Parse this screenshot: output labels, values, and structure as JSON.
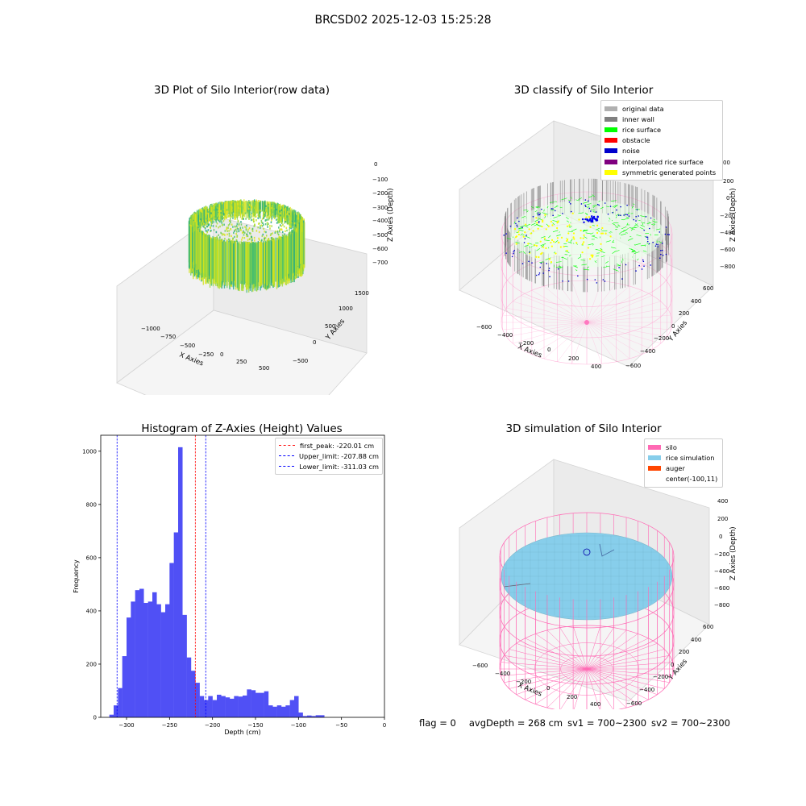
{
  "suptitle": "BRCSD02 2025-12-03 15:25:28",
  "colors": {
    "original": "#b0b0b0",
    "inner_wall": "#808080",
    "rice_surface": "#00ff00",
    "obstacle": "#ff0000",
    "noise": "#0000cc",
    "interpolated": "#800080",
    "symmetric": "#ffff00",
    "silo": "#ff69b4",
    "rice_sim": "#87ceeb",
    "auger": "#ff4500",
    "hist_bar": "#5050f5"
  },
  "panel_raw": {
    "title": "3D Plot of Silo Interior(row data)",
    "xlabel": "X Axies",
    "ylabel": "Y Axies",
    "zlabel": "Z Axies (Depth)",
    "xticks": [
      "−1000",
      "−750",
      "−500",
      "−250",
      "0",
      "250",
      "500"
    ],
    "yticks": [
      "−500",
      "0",
      "500",
      "1000",
      "1500"
    ],
    "zticks": [
      "0",
      "−100",
      "−200",
      "−300",
      "−400",
      "−500",
      "−600",
      "−700"
    ]
  },
  "panel_classify": {
    "title": "3D classify of Silo Interior",
    "xlabel": "X Axies",
    "ylabel": "Y Axies",
    "zlabel": "Z Axies (Depth)",
    "xticks": [
      "−600",
      "−400",
      "−200",
      "0",
      "200",
      "400"
    ],
    "yticks": [
      "−600",
      "−400",
      "−200",
      "0",
      "200",
      "400",
      "600"
    ],
    "zticks": [
      "200",
      "0",
      "−200",
      "−400",
      "−600",
      "−800"
    ],
    "ztick_partial": "00",
    "legend": [
      {
        "label": "original data",
        "color": "#b0b0b0"
      },
      {
        "label": "inner wall",
        "color": "#808080"
      },
      {
        "label": "rice surface",
        "color": "#00ff00"
      },
      {
        "label": "obstacle",
        "color": "#ff0000"
      },
      {
        "label": "noise",
        "color": "#0000cc"
      },
      {
        "label": "interpolated rice surface",
        "color": "#800080"
      },
      {
        "label": "symmetric generated points",
        "color": "#ffff00"
      }
    ]
  },
  "panel_sim": {
    "title": "3D simulation of Silo Interior",
    "xlabel": "X Axies",
    "ylabel": "Y Axies",
    "zlabel": "Z Axies (Depth)",
    "xticks": [
      "−600",
      "−400",
      "−200",
      "0",
      "200",
      "400"
    ],
    "yticks": [
      "−600",
      "−400",
      "−200",
      "0",
      "200",
      "400",
      "600"
    ],
    "zticks": [
      "400",
      "200",
      "0",
      "−200",
      "−400",
      "−600",
      "−800"
    ],
    "legend": [
      {
        "label": "silo",
        "color": "#ff69b4"
      },
      {
        "label": "rice simulation",
        "color": "#87ceeb"
      },
      {
        "label": "auger",
        "color": "#ff4500"
      },
      {
        "label": "center(-100,11)",
        "color": ""
      }
    ]
  },
  "footer": {
    "flag": "flag = 0",
    "avg": "avgDepth = 268 cm",
    "sv1": "sv1 = 700~2300",
    "sv2": "sv2 = 700~2300"
  },
  "chart_data": [
    {
      "type": "histogram",
      "title": "Histogram of Z-Axies (Height) Values",
      "xlabel": "Depth (cm)",
      "ylabel": "Frequency",
      "xlim": [
        -330,
        0
      ],
      "ylim": [
        0,
        1060
      ],
      "bin_start": -320,
      "bin_width": 5,
      "values": [
        10,
        45,
        110,
        230,
        375,
        435,
        478,
        483,
        430,
        435,
        470,
        425,
        395,
        425,
        580,
        695,
        1015,
        385,
        225,
        175,
        130,
        80,
        65,
        80,
        65,
        85,
        80,
        75,
        70,
        80,
        78,
        82,
        105,
        102,
        92,
        92,
        98,
        45,
        40,
        45,
        40,
        45,
        65,
        80,
        18,
        5,
        7,
        5,
        8,
        8
      ],
      "xticks": [
        "−300",
        "−250",
        "−200",
        "−150",
        "−100",
        "−50",
        "0"
      ],
      "xtick_values": [
        -300,
        -250,
        -200,
        -150,
        -100,
        -50,
        0
      ],
      "yticks": [
        "0",
        "200",
        "400",
        "600",
        "800",
        "1000"
      ],
      "ytick_values": [
        0,
        200,
        400,
        600,
        800,
        1000
      ],
      "vlines": [
        {
          "label": "first_peak: -220.01 cm",
          "value": -220.01,
          "color": "#ff0000"
        },
        {
          "label": "Upper_limit: -207.88 cm",
          "value": -207.88,
          "color": "#0000ff"
        },
        {
          "label": "Lower_limit: -311.03 cm",
          "value": -311.03,
          "color": "#0000ff"
        }
      ]
    }
  ]
}
